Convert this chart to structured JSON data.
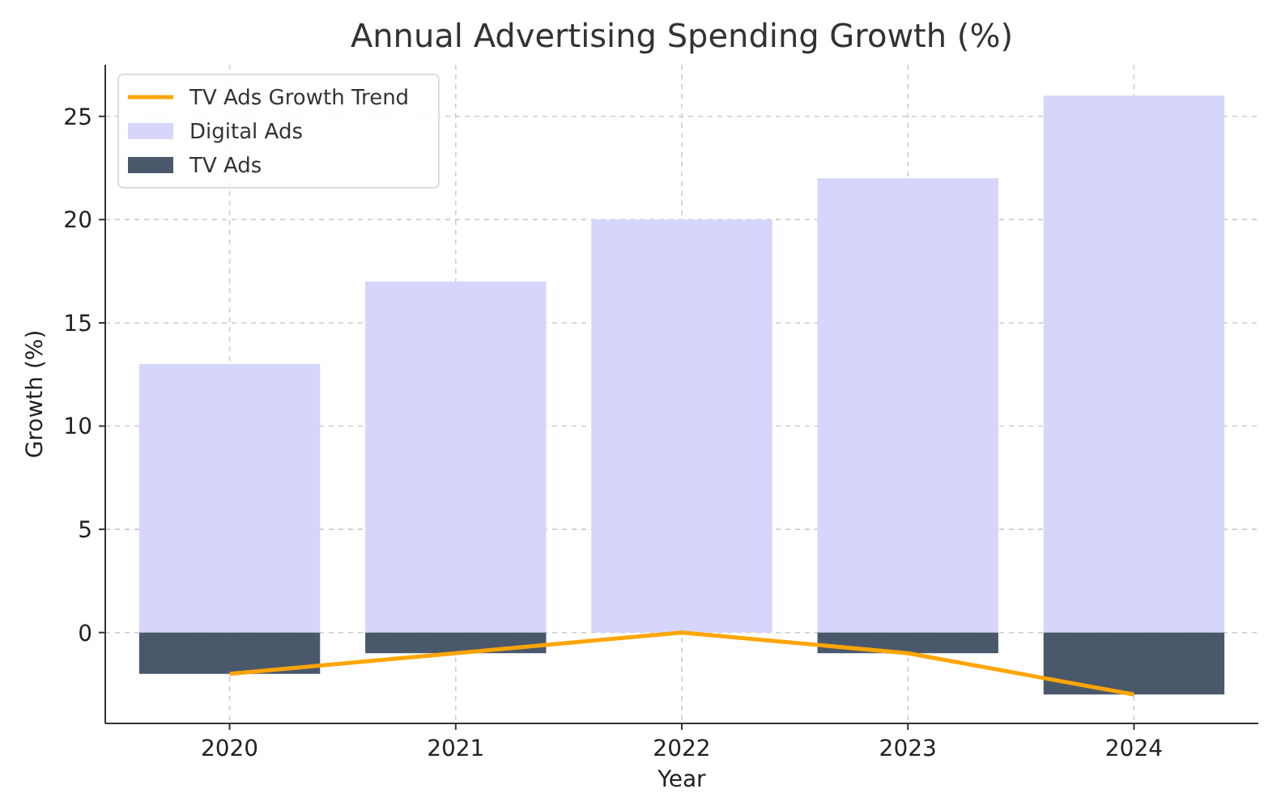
{
  "chart_data": {
    "type": "bar",
    "title": "Annual Advertising Spending Growth (%)",
    "xlabel": "Year",
    "ylabel": "Growth (%)",
    "categories": [
      "2020",
      "2021",
      "2022",
      "2023",
      "2024"
    ],
    "series": [
      {
        "name": "Digital Ads",
        "color": "#d6d6fc",
        "values": [
          13,
          17,
          20,
          22,
          26
        ]
      },
      {
        "name": "TV Ads",
        "color": "#4a586c",
        "values": [
          -2,
          -1,
          0,
          -1,
          -3
        ]
      },
      {
        "name": "TV Ads Growth Trend",
        "type": "line",
        "color": "#ffa500",
        "values": [
          -2,
          -1,
          0,
          -1,
          -3
        ]
      }
    ],
    "stacked": true,
    "ylim": [
      -4.4,
      27.5
    ],
    "yticks": [
      0,
      5,
      10,
      15,
      20,
      25
    ],
    "grid": true,
    "legend": "top left"
  }
}
